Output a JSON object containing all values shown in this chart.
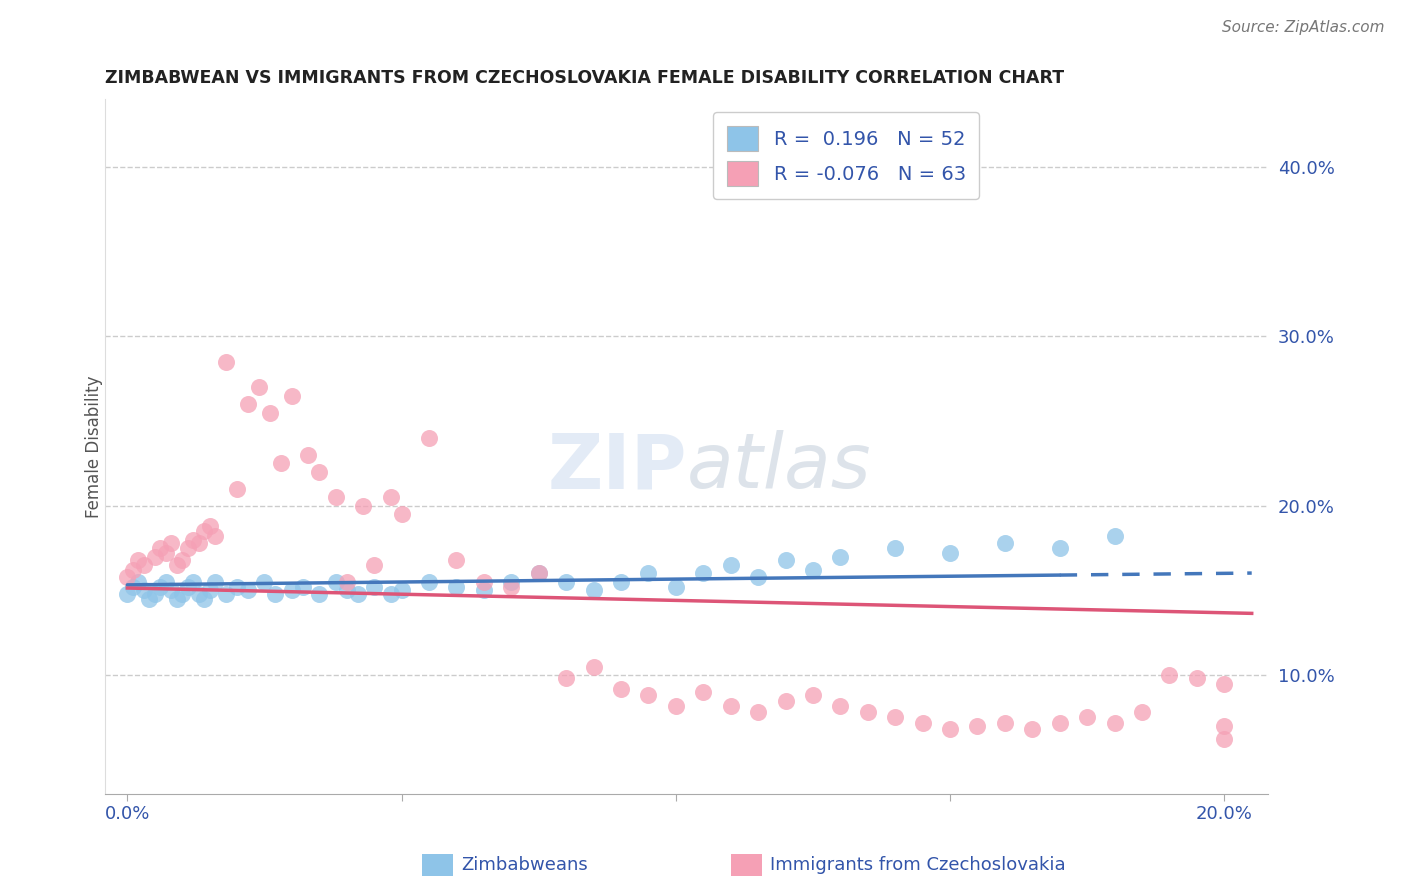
{
  "title": "ZIMBABWEAN VS IMMIGRANTS FROM CZECHOSLOVAKIA FEMALE DISABILITY CORRELATION CHART",
  "source": "Source: ZipAtlas.com",
  "xlabel_blue": "Zimbabweans",
  "xlabel_pink": "Immigrants from Czechoslovakia",
  "ylabel": "Female Disability",
  "xlim": [
    -0.004,
    0.208
  ],
  "ylim": [
    0.03,
    0.44
  ],
  "xtick_positions": [
    0.0,
    0.05,
    0.1,
    0.15,
    0.2
  ],
  "xtick_labels": [
    "0.0%",
    "",
    "",
    "",
    "20.0%"
  ],
  "ytick_right_positions": [
    0.1,
    0.2,
    0.3,
    0.4
  ],
  "ytick_right_labels": [
    "10.0%",
    "20.0%",
    "30.0%",
    "40.0%"
  ],
  "grid_yticks": [
    0.1,
    0.2,
    0.3,
    0.4
  ],
  "grid_color": "#cccccc",
  "blue_color": "#8ec4e8",
  "pink_color": "#f5a0b5",
  "blue_R": 0.196,
  "blue_N": 52,
  "pink_R": -0.076,
  "pink_N": 63,
  "blue_line_color": "#4477bb",
  "pink_line_color": "#dd5577",
  "background_color": "#ffffff",
  "title_color": "#222222",
  "source_color": "#777777",
  "axis_label_color": "#555555",
  "tick_color": "#3355aa",
  "legend_R_color": "#3355aa",
  "blue_scatter_x": [
    0.0,
    0.001,
    0.002,
    0.003,
    0.004,
    0.005,
    0.006,
    0.007,
    0.008,
    0.009,
    0.01,
    0.011,
    0.012,
    0.013,
    0.014,
    0.015,
    0.016,
    0.018,
    0.02,
    0.022,
    0.025,
    0.027,
    0.03,
    0.032,
    0.035,
    0.038,
    0.04,
    0.042,
    0.045,
    0.048,
    0.05,
    0.055,
    0.06,
    0.065,
    0.07,
    0.075,
    0.08,
    0.085,
    0.09,
    0.095,
    0.1,
    0.105,
    0.11,
    0.115,
    0.12,
    0.125,
    0.13,
    0.14,
    0.15,
    0.16,
    0.17,
    0.18
  ],
  "blue_scatter_y": [
    0.148,
    0.152,
    0.155,
    0.15,
    0.145,
    0.148,
    0.152,
    0.155,
    0.15,
    0.145,
    0.148,
    0.152,
    0.155,
    0.148,
    0.145,
    0.15,
    0.155,
    0.148,
    0.152,
    0.15,
    0.155,
    0.148,
    0.15,
    0.152,
    0.148,
    0.155,
    0.15,
    0.148,
    0.152,
    0.148,
    0.15,
    0.155,
    0.152,
    0.15,
    0.155,
    0.16,
    0.155,
    0.15,
    0.155,
    0.16,
    0.152,
    0.16,
    0.165,
    0.158,
    0.168,
    0.162,
    0.17,
    0.175,
    0.172,
    0.178,
    0.175,
    0.182
  ],
  "pink_scatter_x": [
    0.0,
    0.001,
    0.002,
    0.003,
    0.005,
    0.006,
    0.007,
    0.008,
    0.009,
    0.01,
    0.011,
    0.012,
    0.013,
    0.014,
    0.015,
    0.016,
    0.018,
    0.02,
    0.022,
    0.024,
    0.026,
    0.028,
    0.03,
    0.033,
    0.035,
    0.038,
    0.04,
    0.043,
    0.045,
    0.048,
    0.05,
    0.055,
    0.06,
    0.065,
    0.07,
    0.075,
    0.08,
    0.085,
    0.09,
    0.095,
    0.1,
    0.105,
    0.11,
    0.115,
    0.12,
    0.125,
    0.13,
    0.135,
    0.14,
    0.145,
    0.15,
    0.155,
    0.16,
    0.165,
    0.17,
    0.175,
    0.18,
    0.185,
    0.19,
    0.195,
    0.2,
    0.2,
    0.2
  ],
  "pink_scatter_y": [
    0.158,
    0.162,
    0.168,
    0.165,
    0.17,
    0.175,
    0.172,
    0.178,
    0.165,
    0.168,
    0.175,
    0.18,
    0.178,
    0.185,
    0.188,
    0.182,
    0.285,
    0.21,
    0.26,
    0.27,
    0.255,
    0.225,
    0.265,
    0.23,
    0.22,
    0.205,
    0.155,
    0.2,
    0.165,
    0.205,
    0.195,
    0.24,
    0.168,
    0.155,
    0.152,
    0.16,
    0.098,
    0.105,
    0.092,
    0.088,
    0.082,
    0.09,
    0.082,
    0.078,
    0.085,
    0.088,
    0.082,
    0.078,
    0.075,
    0.072,
    0.068,
    0.07,
    0.072,
    0.068,
    0.072,
    0.075,
    0.072,
    0.078,
    0.1,
    0.098,
    0.095,
    0.062,
    0.07
  ]
}
